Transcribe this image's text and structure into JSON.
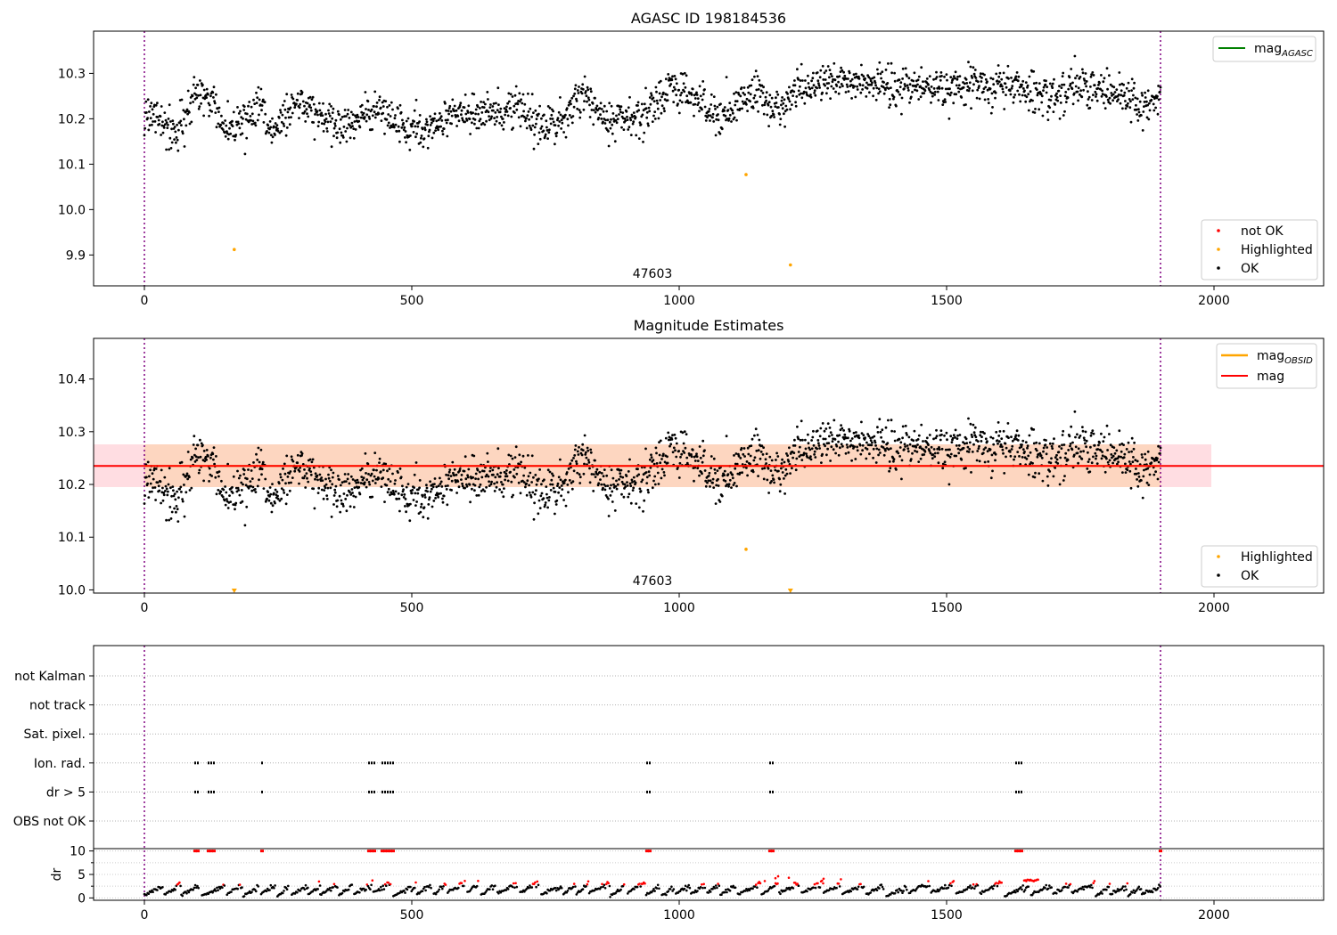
{
  "chart_data": [
    {
      "type": "scatter",
      "title": "AGASC ID 198184536",
      "xlim": [
        -95,
        2205
      ],
      "ylim": [
        9.832,
        10.393
      ],
      "xticks": [
        0,
        500,
        1000,
        1500,
        2000
      ],
      "yticks": [
        9.9,
        10.0,
        10.1,
        10.2,
        10.3
      ],
      "ytick_labels": [
        "9.9",
        "10.0",
        "10.1",
        "10.2",
        "10.3"
      ],
      "vlines": [
        0,
        1900
      ],
      "obsid_label": {
        "text": "47603",
        "x": 950
      },
      "legend_lines": [
        {
          "label": "mag",
          "sub": "AGASC",
          "color": "#008000"
        }
      ],
      "legend_markers": [
        {
          "label": "not OK",
          "color": "#ff0000"
        },
        {
          "label": "Highlighted",
          "color": "#ffa500"
        },
        {
          "label": "OK",
          "color": "#000000"
        }
      ],
      "highlighted_points": [
        [
          168,
          9.912
        ],
        [
          1125,
          10.077
        ],
        [
          1208,
          9.878
        ]
      ],
      "ok_series_segments": [
        [
          0,
          10.215
        ],
        [
          40,
          10.19
        ],
        [
          60,
          10.17
        ],
        [
          100,
          10.26
        ],
        [
          130,
          10.24
        ],
        [
          150,
          10.185
        ],
        [
          200,
          10.2
        ],
        [
          220,
          10.235
        ],
        [
          240,
          10.175
        ],
        [
          280,
          10.235
        ],
        [
          310,
          10.225
        ],
        [
          350,
          10.185
        ],
        [
          400,
          10.19
        ],
        [
          430,
          10.23
        ],
        [
          470,
          10.19
        ],
        [
          520,
          10.175
        ],
        [
          560,
          10.205
        ],
        [
          640,
          10.215
        ],
        [
          700,
          10.225
        ],
        [
          740,
          10.185
        ],
        [
          780,
          10.2
        ],
        [
          820,
          10.255
        ],
        [
          860,
          10.215
        ],
        [
          930,
          10.2
        ],
        [
          980,
          10.265
        ],
        [
          1010,
          10.255
        ],
        [
          1060,
          10.215
        ],
        [
          1080,
          10.205
        ],
        [
          1120,
          10.24
        ],
        [
          1150,
          10.26
        ],
        [
          1180,
          10.215
        ],
        [
          1220,
          10.265
        ],
        [
          1300,
          10.285
        ],
        [
          1400,
          10.27
        ],
        [
          1500,
          10.27
        ],
        [
          1600,
          10.275
        ],
        [
          1700,
          10.25
        ],
        [
          1760,
          10.27
        ],
        [
          1820,
          10.255
        ],
        [
          1860,
          10.225
        ],
        [
          1900,
          10.255
        ]
      ],
      "ok_count": 1900
    },
    {
      "type": "scatter",
      "title": "Magnitude Estimates",
      "xlim": [
        -95,
        2205
      ],
      "ylim": [
        9.994,
        10.477
      ],
      "xticks": [
        0,
        500,
        1000,
        1500,
        2000
      ],
      "yticks": [
        10.0,
        10.1,
        10.2,
        10.3,
        10.4
      ],
      "ytick_labels": [
        "10.0",
        "10.1",
        "10.2",
        "10.3",
        "10.4"
      ],
      "vlines": [
        0,
        1900
      ],
      "obsid_label": {
        "text": "47603",
        "x": 950
      },
      "mag_line": {
        "value": 10.235,
        "x_range": [
          -95,
          2205
        ],
        "color": "#ff0000"
      },
      "mag_band": {
        "low": 10.195,
        "high": 10.276,
        "x_range": [
          -95,
          1995
        ],
        "color": "#ffdde2"
      },
      "obsid_band": {
        "low": 10.195,
        "high": 10.276,
        "x_range": [
          0,
          1900
        ],
        "color": "#fdd6c0"
      },
      "legend_lines": [
        {
          "label": "mag",
          "sub": "OBSID",
          "color": "#ffa500"
        },
        {
          "label": "mag",
          "sub": "",
          "color": "#ff0000"
        }
      ],
      "legend_markers": [
        {
          "label": "Highlighted",
          "color": "#ffa500"
        },
        {
          "label": "OK",
          "color": "#000000"
        }
      ],
      "highlighted_points": [
        [
          1125,
          10.077
        ]
      ],
      "offscale_markers": [
        168,
        1208
      ]
    },
    {
      "type": "scatter",
      "title": "",
      "xlim": [
        -95,
        2205
      ],
      "xticks": [
        0,
        500,
        1000,
        1500,
        2000
      ],
      "vlines": [
        0,
        1900
      ],
      "flag_rows": [
        "not Kalman",
        "not track",
        "Sat. pixel.",
        "Ion. rad.",
        "dr > 5",
        "OBS not OK"
      ],
      "flag_events": {
        "Ion. rad.": [
          95,
          100,
          120,
          125,
          130,
          220,
          420,
          425,
          430,
          445,
          450,
          455,
          460,
          465,
          940,
          945,
          1170,
          1175,
          1630,
          1635,
          1640
        ],
        "dr > 5": [
          95,
          100,
          120,
          125,
          130,
          220,
          420,
          425,
          430,
          445,
          450,
          455,
          460,
          465,
          940,
          945,
          1170,
          1175,
          1630,
          1635,
          1640
        ]
      },
      "dr_panel": {
        "ylabel": "dr",
        "ylim": [
          -0.5,
          10.5
        ],
        "yticks": [
          0,
          5,
          10
        ],
        "ytick_labels": [
          "0",
          "5",
          "10"
        ],
        "clip_value": 10,
        "clipped_x": [
          95,
          100,
          120,
          125,
          130,
          220,
          420,
          425,
          430,
          445,
          450,
          455,
          460,
          465,
          940,
          945,
          1170,
          1175,
          1630,
          1635,
          1640,
          1900
        ]
      }
    }
  ]
}
